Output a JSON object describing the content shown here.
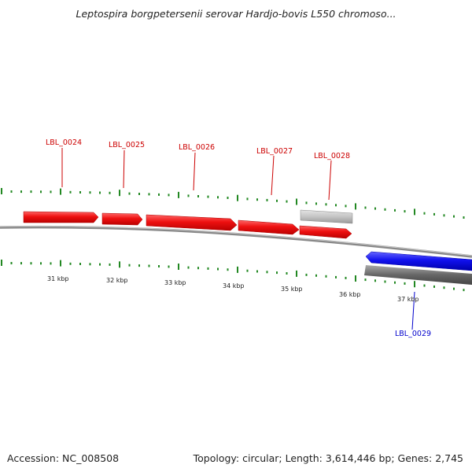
{
  "title": "Leptospira borgpetersenii serovar Hardjo-bovis L550 chromoso...",
  "footer": {
    "accession": "Accession: NC_008508",
    "topology": "Topology: circular; Length: 3,614,446 bp; Genes: 2,745"
  },
  "colors": {
    "forward_gene": "#ee1111",
    "reverse_gene": "#1111ee",
    "pseudo_gene": "#bbbbbb",
    "tick": "#228822",
    "backbone": "#888888",
    "forward_label": "#cc0000",
    "reverse_label": "#0000cc"
  },
  "kbp_labels": [
    "31 kbp",
    "32 kbp",
    "33 kbp",
    "34 kbp",
    "35 kbp",
    "36 kbp",
    "37 kbp"
  ],
  "genes": [
    {
      "id": "LBL_0024",
      "strand": "forward",
      "type": "gene"
    },
    {
      "id": "LBL_0025",
      "strand": "forward",
      "type": "gene"
    },
    {
      "id": "LBL_0026",
      "strand": "forward",
      "type": "gene"
    },
    {
      "id": "LBL_0027",
      "strand": "forward",
      "type": "gene"
    },
    {
      "id": "LBL_0028",
      "strand": "forward",
      "type": "pseudo"
    },
    {
      "id": "LBL_0029",
      "strand": "reverse",
      "type": "gene"
    }
  ]
}
